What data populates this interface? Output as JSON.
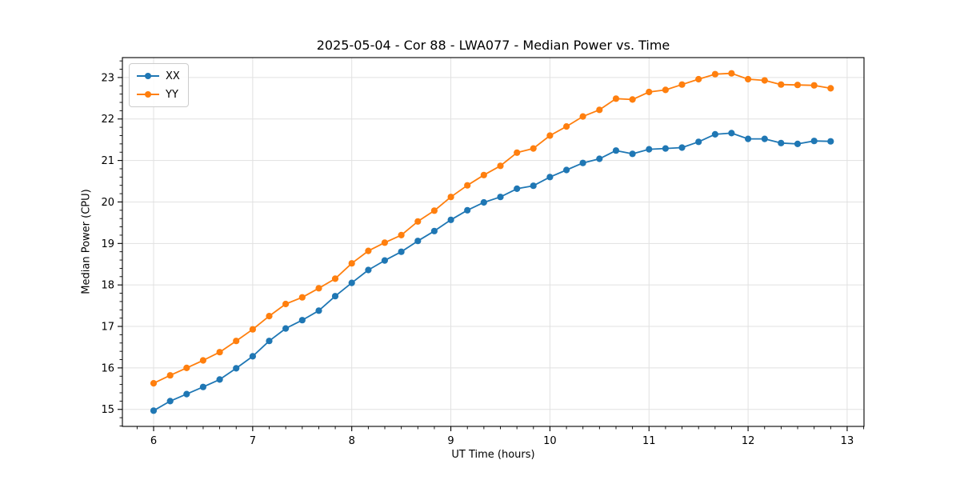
{
  "figure": {
    "background": "#ffffff",
    "text_color": "#000000"
  },
  "chart_data": {
    "type": "line",
    "title": "2025-05-04 - Cor 88 - LWA077 - Median Power vs. Time",
    "xlabel": "UT Time (hours)",
    "ylabel": "Median Power (CPU)",
    "xlim": [
      5.685,
      13.17
    ],
    "ylim": [
      14.59,
      23.48
    ],
    "xticks": [
      6,
      7,
      8,
      9,
      10,
      11,
      12,
      13
    ],
    "yticks": [
      15,
      16,
      17,
      18,
      19,
      20,
      21,
      22,
      23
    ],
    "x_minor_step": 0.16667,
    "y_minor_step": 0.2,
    "grid": true,
    "grid_color": "#e1e1e1",
    "spine_color": "#000000",
    "legend_position": "upper-left",
    "marker": "o",
    "marker_radius": 4.1,
    "line_width": 1.8,
    "x": [
      6.0,
      6.167,
      6.333,
      6.5,
      6.667,
      6.833,
      7.0,
      7.167,
      7.333,
      7.5,
      7.667,
      7.833,
      8.0,
      8.167,
      8.333,
      8.5,
      8.667,
      8.833,
      9.0,
      9.167,
      9.333,
      9.5,
      9.667,
      9.833,
      10.0,
      10.167,
      10.333,
      10.5,
      10.667,
      10.833,
      11.0,
      11.167,
      11.333,
      11.5,
      11.667,
      11.833,
      12.0,
      12.167,
      12.333,
      12.5,
      12.667,
      12.833
    ],
    "series": [
      {
        "name": "XX",
        "color": "#1f77b4",
        "values": [
          14.97,
          15.2,
          15.37,
          15.54,
          15.72,
          15.99,
          16.28,
          16.65,
          16.95,
          17.15,
          17.38,
          17.73,
          18.05,
          18.36,
          18.59,
          18.8,
          19.06,
          19.3,
          19.57,
          19.8,
          19.99,
          20.12,
          20.32,
          20.39,
          20.6,
          20.77,
          20.94,
          21.04,
          21.24,
          21.16,
          21.27,
          21.29,
          21.31,
          21.45,
          21.63,
          21.66,
          21.52,
          21.52,
          21.42,
          21.4,
          21.47,
          21.46
        ]
      },
      {
        "name": "YY",
        "color": "#ff7f0e",
        "values": [
          15.63,
          15.82,
          16.0,
          16.18,
          16.38,
          16.65,
          16.93,
          17.25,
          17.54,
          17.7,
          17.92,
          18.15,
          18.52,
          18.82,
          19.02,
          19.2,
          19.53,
          19.79,
          20.12,
          20.4,
          20.65,
          20.87,
          21.19,
          21.29,
          21.6,
          21.82,
          22.06,
          22.22,
          22.49,
          22.47,
          22.65,
          22.7,
          22.83,
          22.96,
          23.08,
          23.1,
          22.96,
          22.93,
          22.83,
          22.82,
          22.81,
          22.74
        ]
      }
    ]
  }
}
